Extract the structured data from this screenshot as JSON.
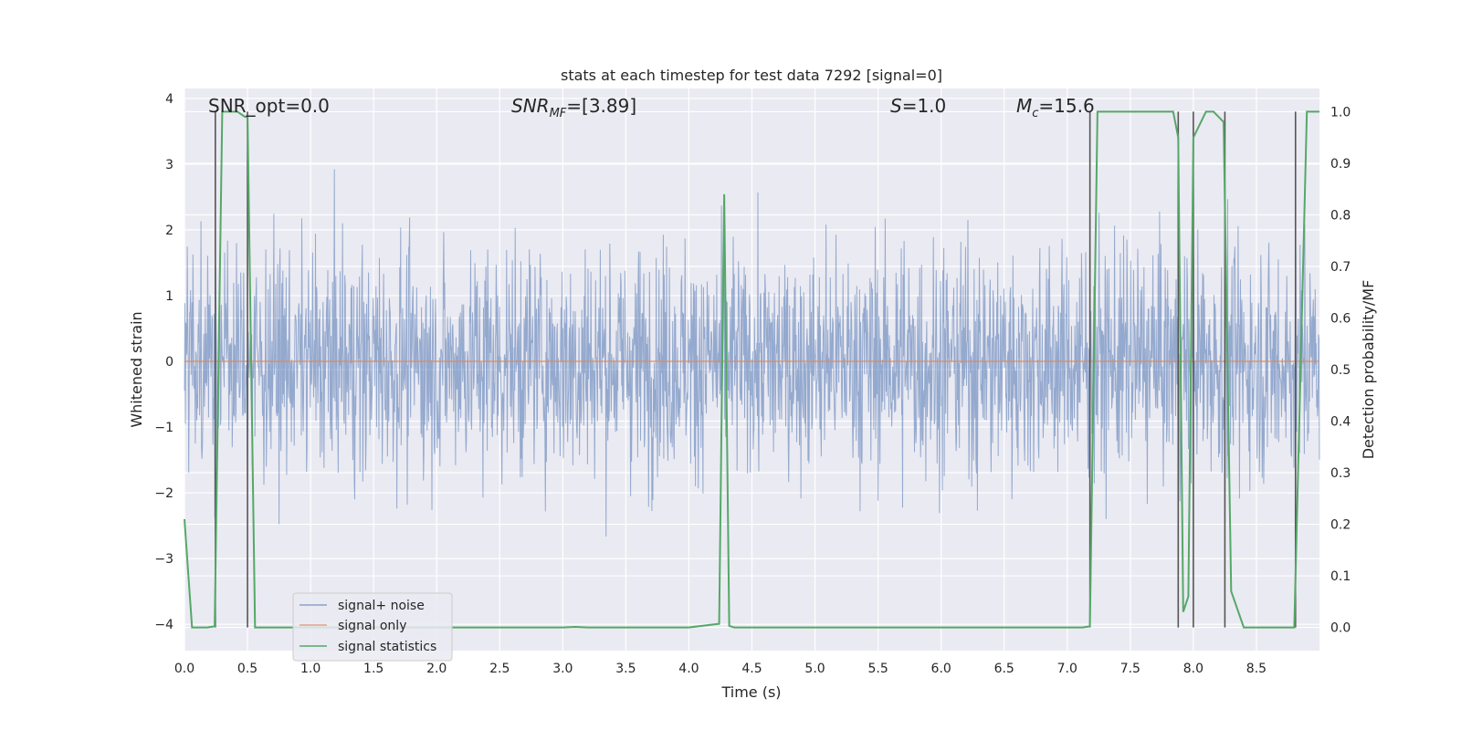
{
  "chart_data": {
    "type": "line",
    "title": "stats at each timestep for test data 7292 [signal=0]",
    "xlabel": "Time (s)",
    "ylabel": "Whitened strain",
    "y2label": "Detection probability/MF",
    "xlim": [
      0.0,
      9.0
    ],
    "ylim": [
      -4.4,
      4.15
    ],
    "y2lim": [
      -0.045,
      1.045
    ],
    "x_ticks": [
      "0.0",
      "0.5",
      "1.0",
      "1.5",
      "2.0",
      "2.5",
      "3.0",
      "3.5",
      "4.0",
      "4.5",
      "5.0",
      "5.5",
      "6.0",
      "6.5",
      "7.0",
      "7.5",
      "8.0",
      "8.5"
    ],
    "y_ticks": [
      "−4",
      "−3",
      "−2",
      "−1",
      "0",
      "1",
      "2",
      "3",
      "4"
    ],
    "y2_ticks": [
      "0.0",
      "0.1",
      "0.2",
      "0.3",
      "0.4",
      "0.5",
      "0.6",
      "0.7",
      "0.8",
      "0.9",
      "1.0"
    ],
    "grid": true,
    "legend_position": "lower-left",
    "annotations": {
      "snr_opt": "SNR_opt=0.0",
      "snr_mf_prefix": "SNR",
      "snr_mf_sub": "MF",
      "snr_mf_value": "=[3.89]",
      "s_symbol": "S",
      "s_value": "=1.0",
      "mc_symbol": "M",
      "mc_sub": "c",
      "mc_value": "=15.6"
    },
    "series": [
      {
        "name": "signal+ noise",
        "color": "#4c72b0",
        "description_values": "whitened noise, approx. within [-3.8, 3.6], envelope roughly ±2"
      },
      {
        "name": "signal only",
        "color": "#dd8452",
        "values_constant": 0.0
      },
      {
        "name": "signal statistics",
        "color": "#55a868",
        "x": [
          0.0,
          0.06,
          0.12,
          0.18,
          0.24,
          0.3,
          0.36,
          0.42,
          0.48,
          0.5,
          0.56,
          0.62,
          1.0,
          2.0,
          3.0,
          3.1,
          3.2,
          4.0,
          4.24,
          4.28,
          4.32,
          4.36,
          4.4,
          5.0,
          6.0,
          7.0,
          7.12,
          7.18,
          7.24,
          7.3,
          7.5,
          7.84,
          7.88,
          7.92,
          7.96,
          8.0,
          8.04,
          8.1,
          8.16,
          8.24,
          8.3,
          8.4,
          8.6,
          8.8,
          8.9,
          8.94,
          9.0
        ],
        "values": [
          0.21,
          0.0,
          0.0,
          0.0,
          0.002,
          1.0,
          1.0,
          1.0,
          0.99,
          0.99,
          0.0,
          0.0,
          0.0,
          0.0,
          0.0,
          0.001,
          0.0,
          0.0,
          0.007,
          0.84,
          0.003,
          0.0,
          0.0,
          0.0,
          0.0,
          0.0,
          0.0,
          0.002,
          1.0,
          1.0,
          1.0,
          1.0,
          0.95,
          0.03,
          0.06,
          0.95,
          0.97,
          1.0,
          1.0,
          0.98,
          0.07,
          0.0,
          0.0,
          0.0,
          1.0,
          1.0,
          1.0
        ]
      }
    ],
    "vertical_markers_x": [
      0.245,
      0.5,
      7.18,
      7.88,
      8.0,
      8.25,
      8.81
    ],
    "legend_entries": [
      "signal+ noise",
      "signal only",
      "signal statistics"
    ]
  }
}
